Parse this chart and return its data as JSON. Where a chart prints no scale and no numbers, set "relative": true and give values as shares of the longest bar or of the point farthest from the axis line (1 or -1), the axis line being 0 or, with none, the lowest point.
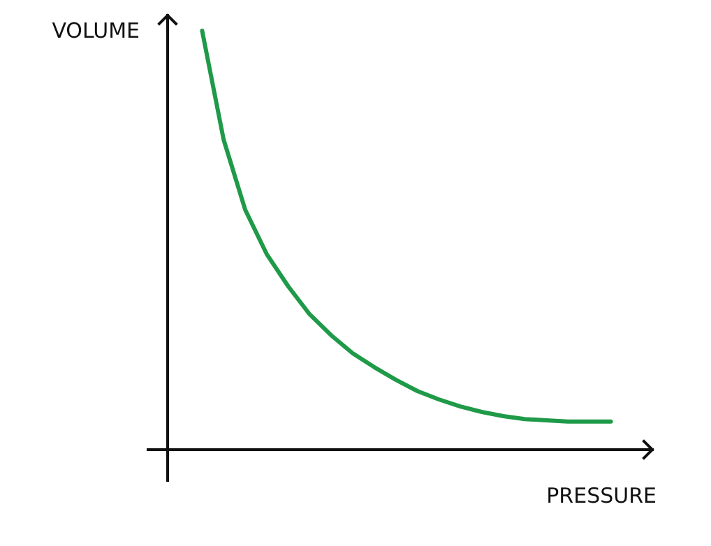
{
  "chart_data": {
    "type": "line",
    "relative": true,
    "xlabel": "PRESSURE",
    "ylabel": "VOLUME",
    "categories": [
      null,
      null,
      null,
      null,
      null,
      null,
      null,
      null,
      null,
      null,
      null,
      null,
      null,
      null,
      null,
      null,
      null,
      null,
      null,
      null
    ],
    "series": [
      {
        "color": "#1f9a48",
        "values": [
          1.0,
          0.74,
          0.573,
          0.467,
          0.39,
          0.323,
          0.273,
          0.23,
          0.197,
          0.167,
          0.14,
          0.12,
          0.103,
          0.09,
          0.08,
          0.073,
          0.07,
          0.067,
          0.067,
          0.067
        ]
      }
    ]
  }
}
